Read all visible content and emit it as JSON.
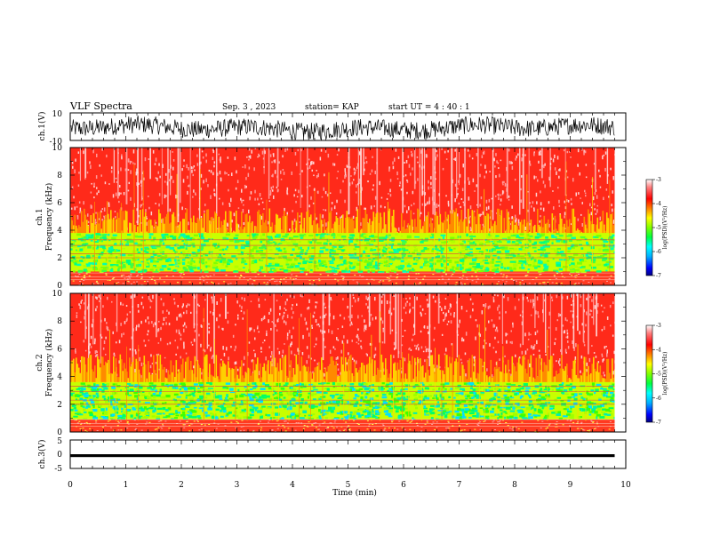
{
  "header": {
    "title": "VLF Spectra",
    "date": "Sep. 3 , 2023",
    "station": "station= KAP",
    "start": "start UT = 4 : 40 : 1"
  },
  "chart_data": [
    {
      "type": "line",
      "ylabel": "ch.1(V)",
      "ylim": [
        -10,
        10
      ],
      "yticks": [
        "10",
        "-10"
      ],
      "xlim": [
        0,
        10
      ],
      "trace_color": "#000000",
      "description_level": "noise between about -9 and 7"
    },
    {
      "type": "heatmap",
      "ylabel_top": "ch.1",
      "ylabel": "Frequency (kHz)",
      "ylim": [
        0,
        10
      ],
      "yticks": [
        "0",
        "2",
        "4",
        "6",
        "8",
        "10"
      ],
      "xlim": [
        0,
        10
      ],
      "data_end_x": 9.8,
      "low_band_khz": [
        1.0,
        3.8
      ],
      "colorbar": {
        "label": "log(PSD)(V²/Hz)",
        "range": [
          -7,
          -3
        ],
        "ticks": [
          "-3",
          "-4",
          "-5",
          "-6",
          "-7"
        ],
        "colors": [
          "#000080",
          "#0000ff",
          "#00b0ff",
          "#00ffff",
          "#00ff40",
          "#80ff00",
          "#ffff00",
          "#ff8000",
          "#ff0000",
          "#ff7070",
          "#ffffff"
        ]
      }
    },
    {
      "type": "heatmap",
      "ylabel_top": "ch.2",
      "ylabel": "Frequency (kHz)",
      "ylim": [
        0,
        10
      ],
      "yticks": [
        "0",
        "2",
        "4",
        "6",
        "8",
        "10"
      ],
      "xlim": [
        0,
        10
      ],
      "data_end_x": 9.8,
      "low_band_khz": [
        0.8,
        3.6
      ],
      "colorbar": {
        "label": "log(PSD)(V²/Hz)",
        "range": [
          -7,
          -3
        ],
        "ticks": [
          "-3",
          "-4",
          "-5",
          "-6",
          "-7"
        ],
        "colors": [
          "#000080",
          "#0000ff",
          "#00b0ff",
          "#00ffff",
          "#00ff40",
          "#80ff00",
          "#ffff00",
          "#ff8000",
          "#ff0000",
          "#ff7070",
          "#ffffff"
        ]
      }
    },
    {
      "type": "line",
      "ylabel": "ch.3(V)",
      "ylim": [
        -5,
        5
      ],
      "yticks": [
        "5",
        "0",
        "-5"
      ],
      "xlim": [
        0,
        10
      ],
      "band_y": [
        -1,
        0
      ],
      "trace_color": "#000000"
    }
  ],
  "xaxis": {
    "label": "Time (min)",
    "ticks": [
      "0",
      "1",
      "2",
      "3",
      "4",
      "5",
      "6",
      "7",
      "8",
      "9",
      "10"
    ]
  }
}
